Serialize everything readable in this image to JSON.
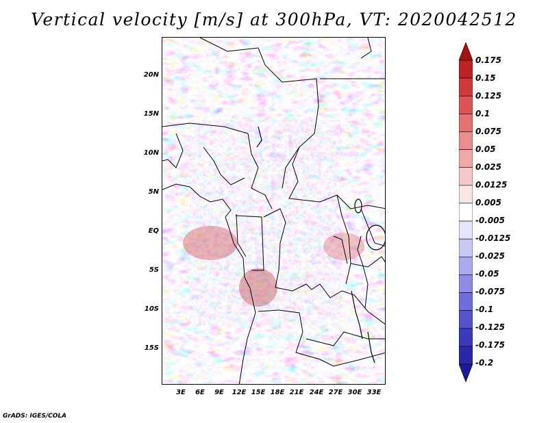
{
  "title": "Vertical velocity [m/s] at 300hPa, VT: 2020042512",
  "footer": "GrADS: IGES/COLA",
  "map": {
    "lat_labels": [
      "20N",
      "15N",
      "10N",
      "5N",
      "EQ",
      "5S",
      "10S",
      "15S"
    ],
    "lon_labels": [
      "3E",
      "6E",
      "9E",
      "12E",
      "15E",
      "18E",
      "21E",
      "24E",
      "27E",
      "30E",
      "33E"
    ]
  },
  "colorbar": {
    "labels": [
      "0.175",
      "0.15",
      "0.125",
      "0.1",
      "0.075",
      "0.05",
      "0.025",
      "0.0125",
      "0.005",
      "-0.005",
      "-0.0125",
      "-0.025",
      "-0.05",
      "-0.075",
      "-0.1",
      "-0.125",
      "-0.175",
      "-0.2"
    ],
    "colors": [
      "#a51414",
      "#be2222",
      "#d03a3a",
      "#dc5454",
      "#e57070",
      "#ec8c8c",
      "#f2a8a8",
      "#f7c8c8",
      "#fbe6e6",
      "#ffffff",
      "#e4e4fa",
      "#c8c8f4",
      "#aaaaee",
      "#8c8ce6",
      "#6e6edc",
      "#5454cc",
      "#3a3abc",
      "#2828a8",
      "#1a1a96"
    ]
  }
}
